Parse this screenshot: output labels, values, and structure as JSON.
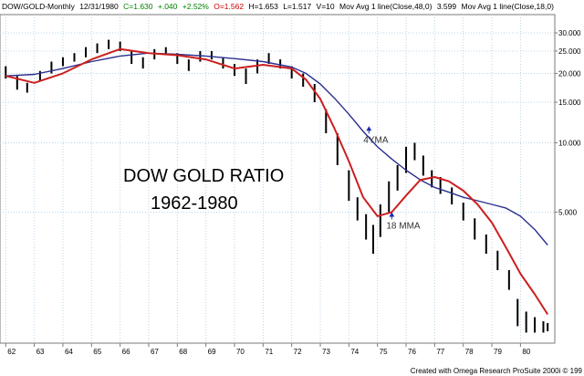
{
  "status": {
    "symbol": "DOW/GOLD-Monthly",
    "date": "12/31/1980",
    "close": "C=1.630",
    "change": "+.040",
    "change_pct": "+2.52%",
    "open": "O=1.562",
    "high": "H=1.653",
    "low": "L=1.517",
    "volume": "V=10",
    "ma1_label": "Mov Avg 1 line(Close,48,0)",
    "ma1_value": "3.599",
    "ma2_label": "Mov Avg 1 line(Close,18,0)"
  },
  "colors": {
    "price_bars": "#000000",
    "ma_48": "#2b2f8f",
    "ma_18": "#cc1f1f",
    "grid": "#b9d4e8",
    "frame": "#7a7a7a",
    "close_up": "#008000",
    "open_down": "#cc0000",
    "arrow": "#1f2bb0"
  },
  "credit": "Created with Omega Research ProSuite 2000i © 199",
  "chart_data": {
    "type": "line",
    "title": "DOW GOLD RATIO",
    "subtitle": "1962-1980",
    "yscale": "log",
    "ylim": [
      1.35,
      36
    ],
    "xlim": [
      1961.8,
      1981.2
    ],
    "grid": true,
    "y_ticks": [
      {
        "value": 30,
        "label": "30.000"
      },
      {
        "value": 25,
        "label": "25.000"
      },
      {
        "value": 20,
        "label": "20.000"
      },
      {
        "value": 15,
        "label": "15.000"
      },
      {
        "value": 10,
        "label": "10.000"
      },
      {
        "value": 5,
        "label": "5.000"
      }
    ],
    "x_ticks": [
      {
        "value": 1962,
        "label": "62"
      },
      {
        "value": 1963,
        "label": "63"
      },
      {
        "value": 1964,
        "label": "64"
      },
      {
        "value": 1965,
        "label": "65"
      },
      {
        "value": 1966,
        "label": "66"
      },
      {
        "value": 1967,
        "label": "67"
      },
      {
        "value": 1968,
        "label": "68"
      },
      {
        "value": 1969,
        "label": "69"
      },
      {
        "value": 1970,
        "label": "70"
      },
      {
        "value": 1971,
        "label": "71"
      },
      {
        "value": 1972,
        "label": "72"
      },
      {
        "value": 1973,
        "label": "73"
      },
      {
        "value": 1974,
        "label": "74"
      },
      {
        "value": 1975,
        "label": "75"
      },
      {
        "value": 1976,
        "label": "76"
      },
      {
        "value": 1977,
        "label": "77"
      },
      {
        "value": 1978,
        "label": "78"
      },
      {
        "value": 1979,
        "label": "79"
      },
      {
        "value": 1980,
        "label": "80"
      }
    ],
    "price_bars": [
      {
        "x": 1962.0,
        "low": 19.0,
        "high": 21.5
      },
      {
        "x": 1962.4,
        "low": 17.0,
        "high": 19.5
      },
      {
        "x": 1962.75,
        "low": 16.5,
        "high": 18.2
      },
      {
        "x": 1963.2,
        "low": 18.5,
        "high": 20.5
      },
      {
        "x": 1963.6,
        "low": 20.0,
        "high": 22.5
      },
      {
        "x": 1964.0,
        "low": 21.5,
        "high": 23.5
      },
      {
        "x": 1964.4,
        "low": 22.5,
        "high": 24.5
      },
      {
        "x": 1964.8,
        "low": 23.5,
        "high": 26.0
      },
      {
        "x": 1965.2,
        "low": 24.5,
        "high": 27.0
      },
      {
        "x": 1965.6,
        "low": 25.5,
        "high": 28.0
      },
      {
        "x": 1966.0,
        "low": 25.0,
        "high": 27.5
      },
      {
        "x": 1966.4,
        "low": 22.0,
        "high": 25.0
      },
      {
        "x": 1966.8,
        "low": 21.0,
        "high": 23.5
      },
      {
        "x": 1967.2,
        "low": 23.0,
        "high": 25.5
      },
      {
        "x": 1967.6,
        "low": 24.0,
        "high": 26.0
      },
      {
        "x": 1968.0,
        "low": 22.0,
        "high": 24.5
      },
      {
        "x": 1968.4,
        "low": 20.5,
        "high": 23.0
      },
      {
        "x": 1968.8,
        "low": 22.5,
        "high": 25.0
      },
      {
        "x": 1969.2,
        "low": 23.0,
        "high": 25.0
      },
      {
        "x": 1969.6,
        "low": 21.0,
        "high": 23.5
      },
      {
        "x": 1970.0,
        "low": 19.5,
        "high": 22.0
      },
      {
        "x": 1970.4,
        "low": 18.0,
        "high": 21.0
      },
      {
        "x": 1970.8,
        "low": 20.0,
        "high": 23.0
      },
      {
        "x": 1971.2,
        "low": 22.0,
        "high": 24.5
      },
      {
        "x": 1971.6,
        "low": 21.0,
        "high": 23.0
      },
      {
        "x": 1972.0,
        "low": 19.0,
        "high": 21.5
      },
      {
        "x": 1972.4,
        "low": 17.5,
        "high": 20.0
      },
      {
        "x": 1972.8,
        "low": 15.0,
        "high": 18.0
      },
      {
        "x": 1973.2,
        "low": 11.0,
        "high": 14.0
      },
      {
        "x": 1973.6,
        "low": 8.0,
        "high": 11.0
      },
      {
        "x": 1974.0,
        "low": 5.6,
        "high": 7.6
      },
      {
        "x": 1974.3,
        "low": 4.6,
        "high": 5.8
      },
      {
        "x": 1974.6,
        "low": 3.8,
        "high": 4.9
      },
      {
        "x": 1974.85,
        "low": 3.3,
        "high": 4.4
      },
      {
        "x": 1975.1,
        "low": 3.9,
        "high": 5.4
      },
      {
        "x": 1975.4,
        "low": 5.0,
        "high": 6.8
      },
      {
        "x": 1975.7,
        "low": 6.2,
        "high": 8.0
      },
      {
        "x": 1976.0,
        "low": 7.4,
        "high": 9.6
      },
      {
        "x": 1976.3,
        "low": 8.4,
        "high": 10.0
      },
      {
        "x": 1976.6,
        "low": 7.2,
        "high": 8.8
      },
      {
        "x": 1976.9,
        "low": 6.4,
        "high": 7.6
      },
      {
        "x": 1977.2,
        "low": 6.0,
        "high": 7.1
      },
      {
        "x": 1977.6,
        "low": 5.4,
        "high": 6.4
      },
      {
        "x": 1978.0,
        "low": 4.6,
        "high": 5.5
      },
      {
        "x": 1978.4,
        "low": 3.8,
        "high": 4.7
      },
      {
        "x": 1978.8,
        "low": 3.3,
        "high": 4.0
      },
      {
        "x": 1979.2,
        "low": 2.8,
        "high": 3.4
      },
      {
        "x": 1979.6,
        "low": 2.3,
        "high": 2.8
      },
      {
        "x": 1979.9,
        "low": 1.6,
        "high": 2.1
      },
      {
        "x": 1980.2,
        "low": 1.5,
        "high": 1.85
      },
      {
        "x": 1980.5,
        "low": 1.5,
        "high": 1.75
      },
      {
        "x": 1980.8,
        "low": 1.5,
        "high": 1.68
      },
      {
        "x": 1980.95,
        "low": 1.52,
        "high": 1.65
      }
    ],
    "series": [
      {
        "name": "Mov Avg 1 line(Close,48,0)",
        "label": "4YMA",
        "x": [
          1962.0,
          1963.0,
          1964.0,
          1965.0,
          1966.0,
          1967.0,
          1968.0,
          1969.0,
          1970.0,
          1971.0,
          1972.0,
          1972.5,
          1973.0,
          1973.5,
          1974.0,
          1974.5,
          1975.0,
          1975.5,
          1976.0,
          1976.5,
          1977.0,
          1977.5,
          1978.0,
          1978.5,
          1979.0,
          1979.5,
          1980.0,
          1980.5,
          1980.95
        ],
        "values": [
          19.5,
          19.8,
          21.0,
          22.5,
          23.8,
          24.5,
          24.2,
          23.8,
          23.2,
          22.5,
          21.3,
          20.0,
          18.0,
          15.6,
          13.3,
          11.2,
          9.6,
          8.5,
          7.6,
          6.9,
          6.4,
          6.1,
          5.8,
          5.6,
          5.4,
          5.2,
          4.8,
          4.2,
          3.6
        ]
      },
      {
        "name": "Mov Avg 1 line(Close,18,0)",
        "label": "18 MMA",
        "x": [
          1962.0,
          1963.0,
          1964.0,
          1965.0,
          1966.0,
          1967.0,
          1968.0,
          1969.0,
          1970.0,
          1971.0,
          1972.0,
          1972.5,
          1973.0,
          1973.5,
          1974.0,
          1974.5,
          1975.0,
          1975.5,
          1976.0,
          1976.5,
          1977.0,
          1977.5,
          1978.0,
          1978.5,
          1979.0,
          1979.5,
          1980.0,
          1980.5,
          1980.95
        ],
        "values": [
          19.5,
          18.2,
          20.0,
          23.0,
          25.5,
          24.5,
          24.0,
          23.0,
          21.0,
          21.8,
          21.0,
          18.8,
          15.5,
          11.5,
          8.3,
          5.8,
          4.8,
          5.0,
          5.9,
          6.9,
          7.1,
          6.8,
          6.2,
          5.4,
          4.5,
          3.5,
          2.7,
          2.2,
          1.8
        ]
      }
    ],
    "annotations": [
      {
        "text": "4YMA",
        "points_to": "Mov Avg 1 line(Close,48,0)",
        "x": 1974.7,
        "y": 11.8
      },
      {
        "text": "18 MMA",
        "points_to": "Mov Avg 1 line(Close,18,0)",
        "x": 1975.5,
        "y": 5.0
      }
    ]
  }
}
